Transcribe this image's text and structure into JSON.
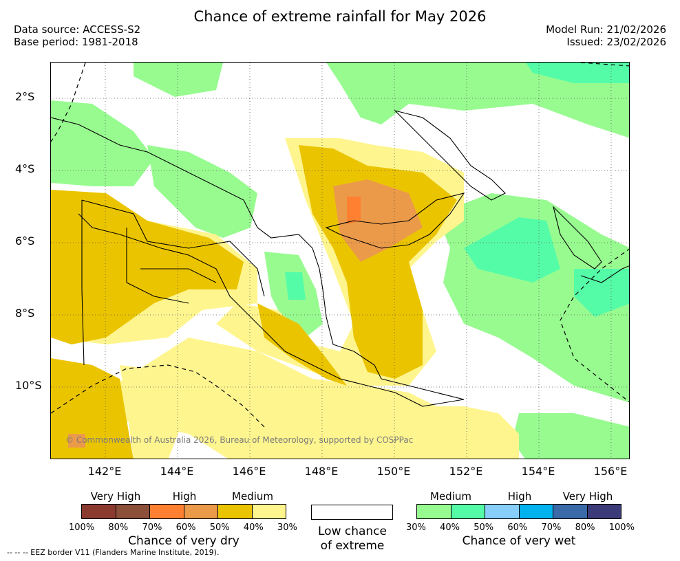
{
  "title": "Chance of extreme rainfall for May 2026",
  "meta": {
    "data_source": "Data source: ACCESS-S2",
    "base_period": "Base period: 1981-2018",
    "model_run": "Model Run: 21/02/2026",
    "issued": "Issued: 23/02/2026"
  },
  "map": {
    "lat_labels": [
      "2°S",
      "4°S",
      "6°S",
      "8°S",
      "10°S"
    ],
    "lon_labels": [
      "142°E",
      "144°E",
      "146°E",
      "148°E",
      "150°E",
      "152°E",
      "154°E",
      "156°E"
    ],
    "credit": "© Commonwealth of Australia 2026, Bureau of Meteorology, supported by COSPPac"
  },
  "legend": {
    "dry": {
      "levels": [
        "Very High",
        "High",
        "Medium"
      ],
      "colors": [
        "#8b3a2f",
        "#8b4f3a",
        "#ff8030",
        "#eb9a4a",
        "#ebc400",
        "#fff58f"
      ],
      "ticks": [
        "100%",
        "80%",
        "70%",
        "60%",
        "50%",
        "40%",
        "30%"
      ],
      "caption": "Chance of very dry"
    },
    "low": {
      "line1": "Low chance",
      "line2": "of extreme"
    },
    "wet": {
      "levels": [
        "Medium",
        "High",
        "Very High"
      ],
      "colors": [
        "#98fb90",
        "#55fca8",
        "#87cefa",
        "#00b2ee",
        "#3a6aa8",
        "#3b3b7a"
      ],
      "ticks": [
        "30%",
        "40%",
        "50%",
        "60%",
        "70%",
        "80%",
        "100%"
      ],
      "caption": "Chance of very wet"
    },
    "eez_note": "-- -- -- EEZ border V11 (Flanders Marine Institute, 2019)."
  }
}
